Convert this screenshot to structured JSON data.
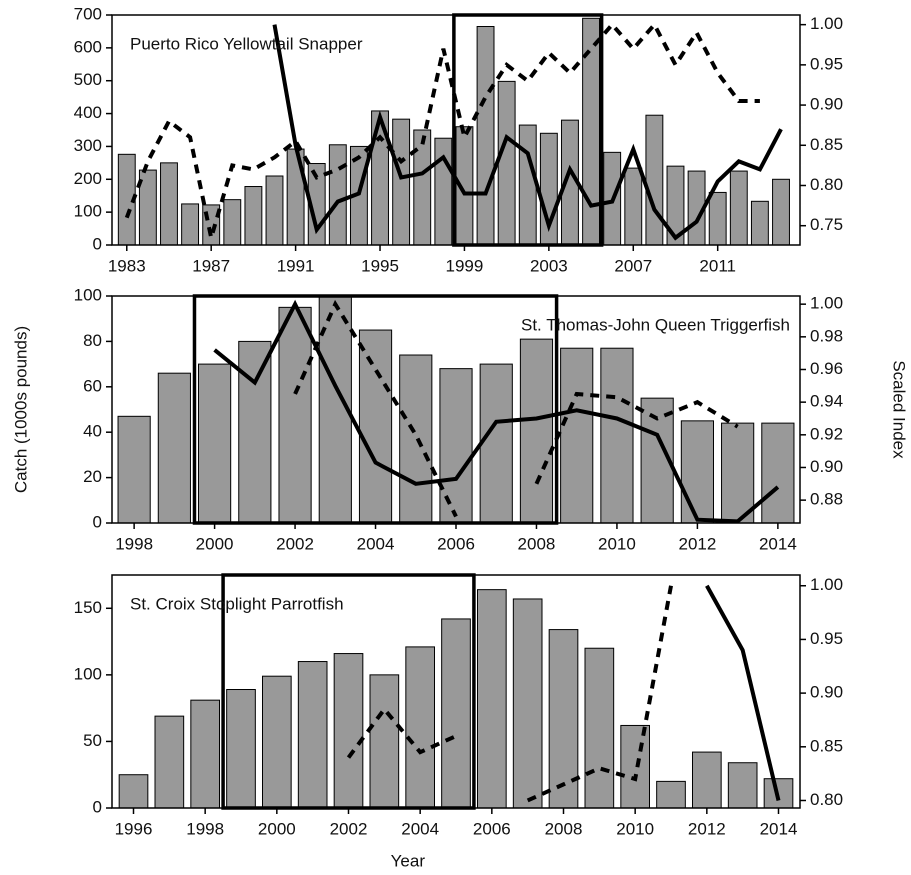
{
  "chart_data": [
    {
      "type": "bar",
      "title": "Puerto Rico Yellowtail Snapper",
      "x": [
        1983,
        1984,
        1985,
        1986,
        1987,
        1988,
        1989,
        1990,
        1991,
        1992,
        1993,
        1994,
        1995,
        1996,
        1997,
        1998,
        1999,
        2000,
        2001,
        2002,
        2003,
        2004,
        2005,
        2006,
        2007,
        2008,
        2009,
        2010,
        2011,
        2012,
        2013,
        2014
      ],
      "values": [
        276,
        228,
        250,
        125,
        122,
        138,
        178,
        210,
        292,
        248,
        305,
        300,
        408,
        383,
        350,
        325,
        360,
        665,
        498,
        365,
        340,
        380,
        690,
        282,
        234,
        395,
        240,
        225,
        160,
        225,
        133,
        200
      ],
      "color": "#999999",
      "highlight_period": [
        1999,
        2005
      ],
      "series": [
        {
          "axis": "y2",
          "style": "solid",
          "color": "#000000",
          "values": [
            null,
            null,
            null,
            null,
            null,
            null,
            null,
            1.0,
            0.85,
            0.745,
            0.78,
            0.79,
            0.885,
            0.81,
            0.815,
            0.835,
            0.79,
            0.79,
            0.86,
            0.84,
            0.75,
            0.82,
            0.775,
            0.78,
            0.845,
            0.77,
            0.735,
            0.755,
            0.805,
            0.83,
            0.82,
            0.87
          ]
        },
        {
          "axis": "y2",
          "style": "dashed",
          "color": "#000000",
          "values": [
            0.76,
            0.83,
            0.88,
            0.86,
            0.735,
            0.825,
            0.82,
            0.835,
            0.855,
            0.81,
            0.82,
            0.835,
            0.86,
            0.83,
            0.85,
            0.97,
            0.86,
            0.91,
            0.95,
            0.93,
            0.965,
            0.94,
            0.97,
            1.0,
            0.97,
            1.0,
            0.95,
            0.99,
            0.94,
            0.905,
            0.905,
            null
          ]
        }
      ],
      "xlim": [
        1982.3,
        2014.9
      ],
      "xticks": [
        1983,
        1987,
        1991,
        1995,
        1999,
        2003,
        2007,
        2011
      ],
      "ylim": [
        0,
        700
      ],
      "yticks": [
        0,
        100,
        200,
        300,
        400,
        500,
        600,
        700
      ],
      "y2lim": [
        0.726,
        1.012
      ],
      "y2ticks": [
        0.75,
        {
          "value": 0.8,
          "label": "0.80"
        },
        0.85,
        {
          "value": 0.9,
          "label": "0.90"
        },
        0.95,
        {
          "value": 1,
          "label": "1.00"
        }
      ]
    },
    {
      "type": "bar",
      "title": "St. Thomas-John Queen Triggerfish",
      "ylabel": "Catch (1000s pounds)",
      "y2label": "Scaled Index",
      "x": [
        1998,
        1999,
        2000,
        2001,
        2002,
        2003,
        2004,
        2005,
        2006,
        2007,
        2008,
        2009,
        2010,
        2011,
        2012,
        2013,
        2014
      ],
      "values": [
        47,
        66,
        70,
        80,
        95,
        100,
        85,
        74,
        68,
        70,
        81,
        77,
        77,
        55,
        45,
        44,
        44
      ],
      "color": "#999999",
      "highlight_period": [
        2000,
        2008
      ],
      "series": [
        {
          "axis": "y2",
          "style": "solid",
          "color": "#000000",
          "values": [
            null,
            null,
            0.972,
            0.952,
            1.0,
            0.95,
            0.903,
            0.89,
            0.893,
            0.928,
            0.93,
            0.935,
            0.93,
            0.92,
            0.868,
            0.867,
            0.888
          ]
        },
        {
          "axis": "y2",
          "style": "dashed",
          "color": "#000000",
          "values": [
            null,
            null,
            null,
            null,
            0.945,
            1.0,
            0.96,
            0.92,
            0.87,
            null,
            0.89,
            0.945,
            0.943,
            0.93,
            0.94,
            0.925,
            null
          ]
        }
      ],
      "xlim": [
        1997.45,
        2014.55
      ],
      "xticks": [
        1998,
        2000,
        2002,
        2004,
        2006,
        2008,
        2010,
        2012,
        2014
      ],
      "ylim": [
        0,
        100
      ],
      "yticks": [
        0,
        20,
        40,
        60,
        80,
        100
      ],
      "y2lim": [
        0.866,
        1.005
      ],
      "y2ticks": [
        0.88,
        {
          "value": 0.9,
          "label": "0.90"
        },
        0.92,
        0.94,
        0.96,
        0.98,
        {
          "value": 1,
          "label": "1.00"
        }
      ]
    },
    {
      "type": "bar",
      "title": "St. Croix Stoplight Parrotfish",
      "xlabel": "Year",
      "x": [
        1996,
        1997,
        1998,
        1999,
        2000,
        2001,
        2002,
        2003,
        2004,
        2005,
        2006,
        2007,
        2008,
        2009,
        2010,
        2011,
        2012,
        2013,
        2014
      ],
      "values": [
        25,
        69,
        81,
        89,
        99,
        110,
        116,
        100,
        121,
        142,
        164,
        157,
        134,
        120,
        62,
        20,
        42,
        34,
        22
      ],
      "color": "#999999",
      "highlight_period": [
        1999,
        2005
      ],
      "series": [
        {
          "axis": "y2",
          "style": "dashed",
          "color": "#000000",
          "values": [
            null,
            null,
            null,
            null,
            null,
            null,
            0.84,
            0.885,
            0.845,
            0.86,
            null,
            0.8,
            0.815,
            0.83,
            0.82,
            1.0,
            null,
            null,
            null
          ]
        },
        {
          "axis": "y2",
          "style": "solid",
          "color": "#000000",
          "values": [
            null,
            null,
            null,
            null,
            null,
            null,
            null,
            null,
            null,
            null,
            null,
            null,
            null,
            null,
            null,
            null,
            1.0,
            0.94,
            0.8
          ]
        }
      ],
      "xlim": [
        1995.4,
        2014.6
      ],
      "xticks": [
        1996,
        1998,
        2000,
        2002,
        2004,
        2006,
        2008,
        2010,
        2012,
        2014
      ],
      "ylim": [
        0,
        175
      ],
      "yticks": [
        0,
        50,
        100,
        150
      ],
      "y2lim": [
        0.793,
        1.01
      ],
      "y2ticks": [
        {
          "value": 0.8,
          "label": "0.80"
        },
        0.85,
        {
          "value": 0.9,
          "label": "0.90"
        },
        0.95,
        {
          "value": 1,
          "label": "1.00"
        }
      ]
    }
  ]
}
